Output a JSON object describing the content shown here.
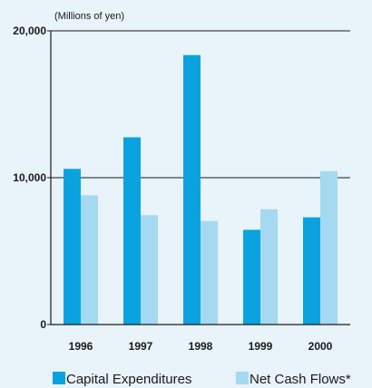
{
  "chart_data": {
    "type": "bar",
    "unit_label": "(Millions of yen)",
    "categories": [
      "1996",
      "1997",
      "1998",
      "1999",
      "2000"
    ],
    "series": [
      {
        "name": "Capital Expenditures",
        "color": "#0aa3e0",
        "values": [
          10600,
          12750,
          18350,
          6450,
          7300
        ]
      },
      {
        "name": "Net Cash Flows*",
        "color": "#a4d9f1",
        "values": [
          8800,
          7450,
          7050,
          7850,
          10450
        ]
      }
    ],
    "y_ticks": [
      {
        "value": 0,
        "label": "0"
      },
      {
        "value": 10000,
        "label": "10,000"
      },
      {
        "value": 20000,
        "label": "20,000"
      }
    ],
    "ylim": [
      0,
      20000
    ],
    "grid": true,
    "legend_position": "bottom"
  }
}
